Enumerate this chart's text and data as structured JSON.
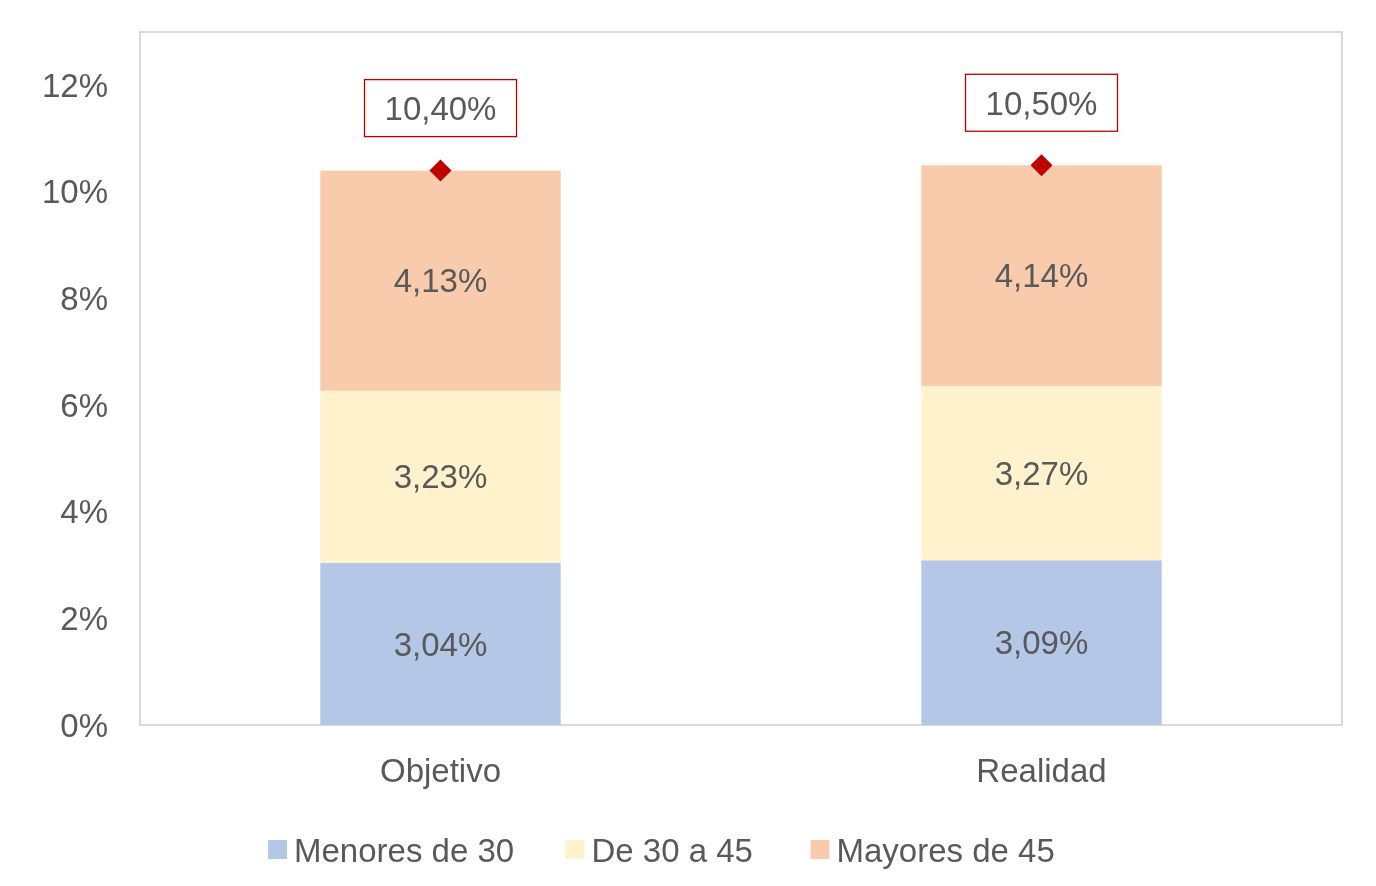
{
  "chart_data": {
    "type": "bar",
    "stacked": true,
    "categories": [
      "Objetivo",
      "Realidad"
    ],
    "series": [
      {
        "name": "Menores de 30",
        "color": "#b4c7e7",
        "values": [
          3.04,
          3.09
        ],
        "value_labels": [
          "3,04%",
          "3,09%"
        ]
      },
      {
        "name": "De 30 a 45",
        "color": "#fff2cc",
        "values": [
          3.23,
          3.27
        ],
        "value_labels": [
          "3,23%",
          "3,27%"
        ]
      },
      {
        "name": "Mayores de 45",
        "color": "#f8cbad",
        "values": [
          4.13,
          4.14
        ],
        "value_labels": [
          "4,13%",
          "4,14%"
        ]
      },
      {
        "type": "scatter",
        "color": "#c00000",
        "x": [
          "Objetivo",
          "Realidad"
        ],
        "values": [
          10.4,
          10.5
        ],
        "value_labels": [
          "10,40%",
          "10,50%"
        ],
        "marker": "diamond"
      }
    ],
    "ylim": [
      0,
      13
    ],
    "yticks": [
      {
        "value": 0,
        "label": "0%"
      },
      {
        "value": 2,
        "label": "2%"
      },
      {
        "value": 4,
        "label": "4%"
      },
      {
        "value": 6,
        "label": "6%"
      },
      {
        "value": 8,
        "label": "8%"
      },
      {
        "value": 10,
        "label": "10%"
      },
      {
        "value": 12,
        "label": "12%"
      }
    ],
    "grid": false,
    "legend": "bottom"
  }
}
